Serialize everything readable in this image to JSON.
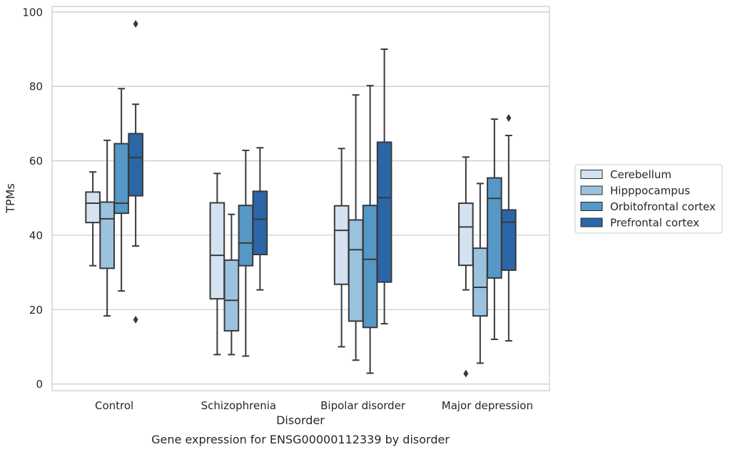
{
  "chart_data": {
    "type": "boxplot",
    "title": "Gene expression for ENSG00000112339 by disorder",
    "xlabel": "Disorder",
    "ylabel": "TPMs",
    "ylim": [
      -1.8,
      101.5
    ],
    "yticks": [
      0,
      20,
      40,
      60,
      80,
      100
    ],
    "grid": "horizontal",
    "legend_position": "right",
    "categories": [
      "Control",
      "Schizophrenia",
      "Bipolar disorder",
      "Major depression"
    ],
    "series": [
      {
        "name": "Cerebellum",
        "color": "#d4e2f1",
        "boxes": [
          {
            "whislo": 31.8,
            "q1": 43.4,
            "med": 48.6,
            "q3": 51.6,
            "whishi": 57.0,
            "fliers": []
          },
          {
            "whislo": 7.9,
            "q1": 22.9,
            "med": 34.6,
            "q3": 48.7,
            "whishi": 56.6,
            "fliers": []
          },
          {
            "whislo": 10.0,
            "q1": 26.8,
            "med": 41.3,
            "q3": 47.9,
            "whishi": 63.3,
            "fliers": []
          },
          {
            "whislo": 25.3,
            "q1": 31.9,
            "med": 42.2,
            "q3": 48.6,
            "whishi": 61.0,
            "fliers": [
              2.8
            ]
          }
        ]
      },
      {
        "name": "Hipppocampus",
        "color": "#9bc3df",
        "boxes": [
          {
            "whislo": 18.3,
            "q1": 31.1,
            "med": 44.4,
            "q3": 48.9,
            "whishi": 65.5,
            "fliers": []
          },
          {
            "whislo": 7.9,
            "q1": 14.3,
            "med": 22.5,
            "q3": 33.3,
            "whishi": 45.6,
            "fliers": []
          },
          {
            "whislo": 6.4,
            "q1": 16.9,
            "med": 36.1,
            "q3": 44.1,
            "whishi": 77.7,
            "fliers": []
          },
          {
            "whislo": 5.6,
            "q1": 18.3,
            "med": 26.0,
            "q3": 36.5,
            "whishi": 53.9,
            "fliers": []
          }
        ]
      },
      {
        "name": "Orbitofrontal cortex",
        "color": "#5598c6",
        "boxes": [
          {
            "whislo": 25.0,
            "q1": 45.9,
            "med": 48.6,
            "q3": 64.6,
            "whishi": 79.4,
            "fliers": []
          },
          {
            "whislo": 7.5,
            "q1": 31.8,
            "med": 37.9,
            "q3": 48.0,
            "whishi": 62.8,
            "fliers": []
          },
          {
            "whislo": 2.9,
            "q1": 15.2,
            "med": 33.5,
            "q3": 48.0,
            "whishi": 80.2,
            "fliers": []
          },
          {
            "whislo": 12.0,
            "q1": 28.5,
            "med": 49.9,
            "q3": 55.4,
            "whishi": 71.2,
            "fliers": []
          }
        ]
      },
      {
        "name": "Prefrontal cortex",
        "color": "#2b66a7",
        "boxes": [
          {
            "whislo": 37.1,
            "q1": 50.6,
            "med": 60.9,
            "q3": 67.3,
            "whishi": 75.2,
            "fliers": [
              96.8,
              17.3
            ]
          },
          {
            "whislo": 25.3,
            "q1": 34.8,
            "med": 44.3,
            "q3": 51.8,
            "whishi": 63.5,
            "fliers": []
          },
          {
            "whislo": 16.2,
            "q1": 27.4,
            "med": 50.1,
            "q3": 65.0,
            "whishi": 90.0,
            "fliers": []
          },
          {
            "whislo": 11.6,
            "q1": 30.6,
            "med": 43.5,
            "q3": 46.8,
            "whishi": 66.8,
            "fliers": [
              71.5
            ]
          }
        ]
      }
    ],
    "axis_color": "#cccccc",
    "line_color": "#3a3a3a"
  }
}
